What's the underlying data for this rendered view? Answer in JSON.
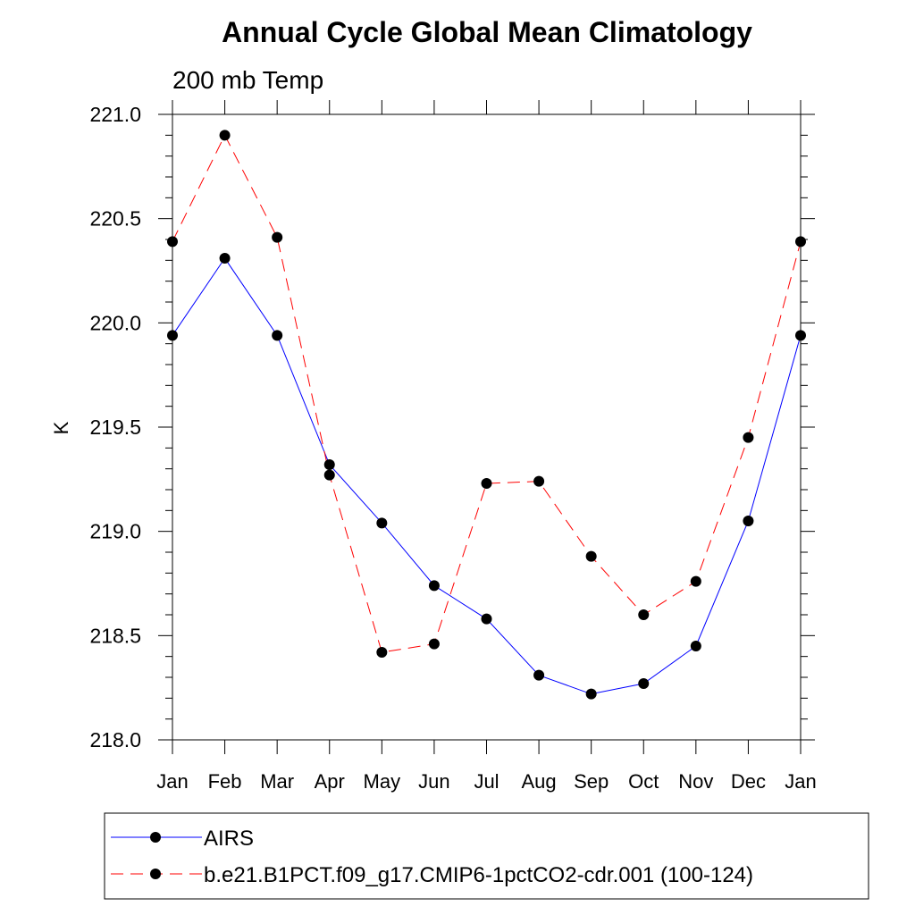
{
  "chart_data": {
    "type": "line",
    "title": "Annual Cycle Global Mean Climatology",
    "subtitle": "200 mb Temp",
    "xlabel": "",
    "ylabel": "K",
    "ylim": [
      218.0,
      221.0
    ],
    "yticks": [
      "218.0",
      "218.5",
      "219.0",
      "219.5",
      "220.0",
      "220.5",
      "221.0"
    ],
    "categories": [
      "Jan",
      "Feb",
      "Mar",
      "Apr",
      "May",
      "Jun",
      "Jul",
      "Aug",
      "Sep",
      "Oct",
      "Nov",
      "Dec",
      "Jan"
    ],
    "series": [
      {
        "name": "AIRS",
        "color": "#0000ff",
        "dash": "solid",
        "values": [
          219.94,
          220.31,
          219.94,
          219.32,
          219.04,
          218.74,
          218.58,
          218.31,
          218.22,
          218.27,
          218.45,
          219.05,
          219.94
        ]
      },
      {
        "name": "b.e21.B1PCT.f09_g17.CMIP6-1pctCO2-cdr.001 (100-124)",
        "color": "#ff0000",
        "dash": "dashed",
        "values": [
          220.39,
          220.9,
          220.41,
          219.27,
          218.42,
          218.46,
          219.23,
          219.24,
          218.88,
          218.6,
          218.76,
          219.45,
          220.39
        ]
      }
    ],
    "legend_position": "bottom"
  }
}
